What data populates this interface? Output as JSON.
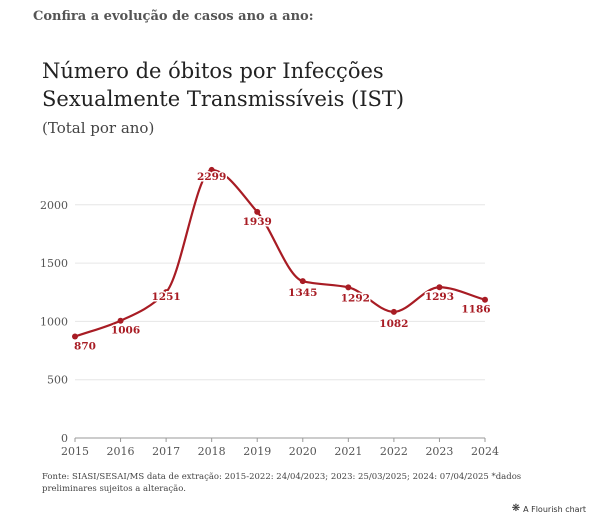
{
  "intro": "Confira a evolução de casos ano a ano:",
  "title_lines": [
    "Número de óbitos por Infecções",
    "Sexualmente Transmissíveis (IST)"
  ],
  "subtitle": "(Total por ano)",
  "footnote": "Fonte: SIASI/SESAI/MS data de extração: 2015-2022: 24/04/2023; 2023: 25/03/2025; 2024: 07/04/2025 *dados preliminares sujeitos a alteração.",
  "brand": {
    "label": "A Flourish chart",
    "icon": "flourish-logo-icon"
  },
  "chart_data": {
    "type": "line",
    "title": "Número de óbitos por Infecções Sexualmente Transmissíveis (IST)",
    "subtitle": "(Total por ano)",
    "categories": [
      "2015",
      "2016",
      "2017",
      "2018",
      "2019",
      "2020",
      "2021",
      "2022",
      "2023",
      "2024"
    ],
    "values": [
      870,
      1006,
      1251,
      2299,
      1939,
      1345,
      1292,
      1082,
      1293,
      1186
    ],
    "data_labels": [
      "870",
      "1006",
      "1251",
      "2299",
      "1939",
      "1345",
      "1292",
      "1082",
      "1293",
      "1186"
    ],
    "yticks": [
      0,
      500,
      1000,
      1500,
      2000
    ],
    "ylim": [
      0,
      2300
    ],
    "line_color": "#a81c24",
    "grid": true,
    "curve": "smooth"
  }
}
